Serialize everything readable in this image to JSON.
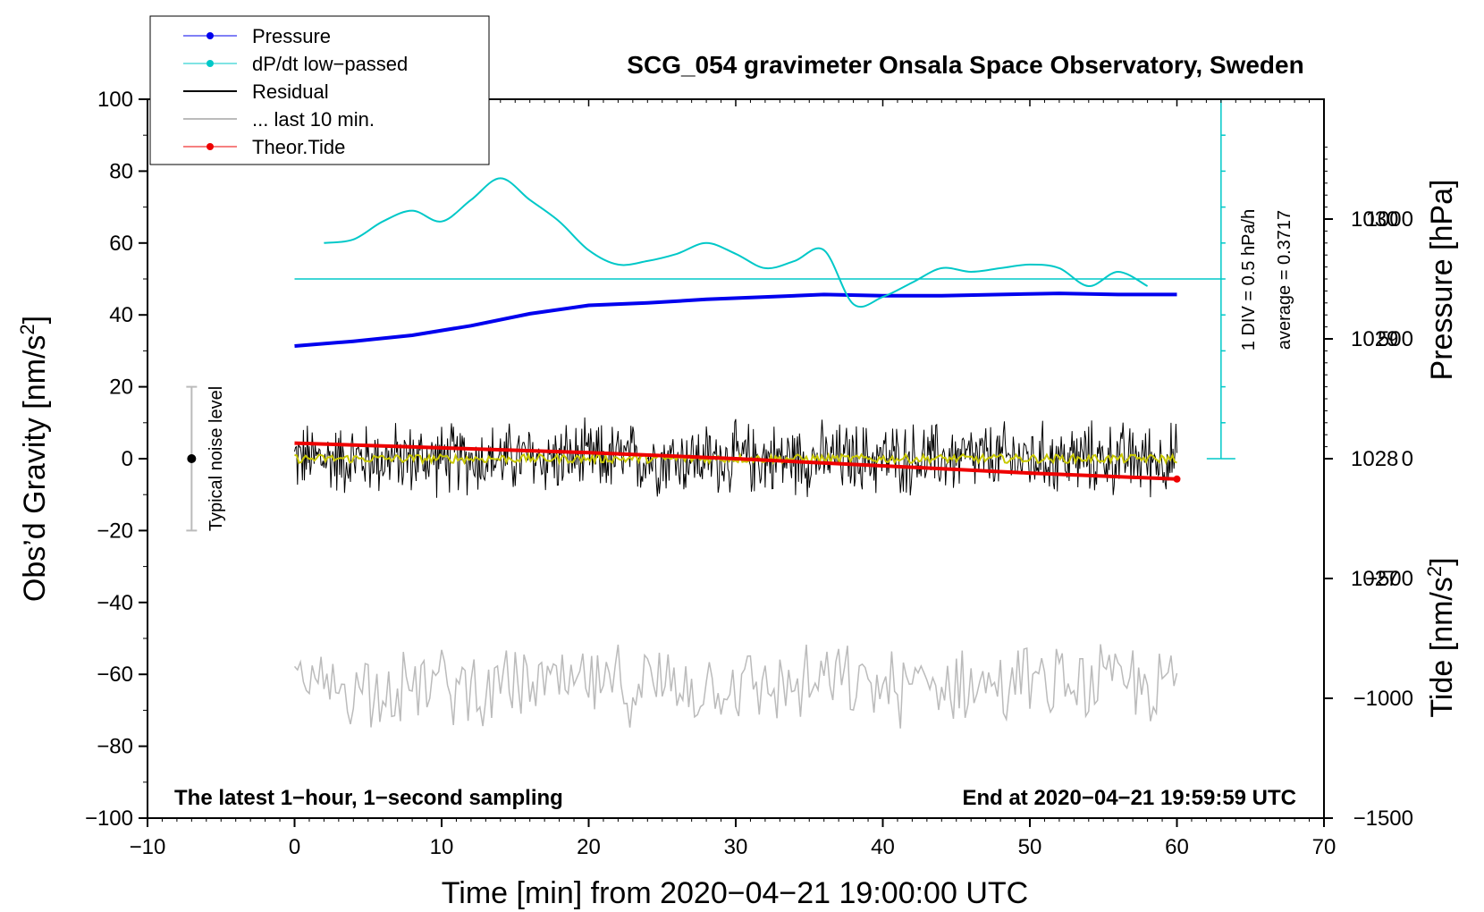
{
  "chart_data": {
    "type": "line",
    "title": "SCG_054 gravimeter Onsala Space Observatory, Sweden",
    "xlabel": "Time [min] from 2020−04−21 19:00:00 UTC",
    "ylabel_left": "Obs’d Gravity [nm/s",
    "ylabel_left_sup": "2",
    "ylabel_left_end": "]",
    "ylabel_right_pressure": "Pressure [hPa]",
    "ylabel_right_tide": "Tide [nm/s",
    "ylabel_right_tide_sup": "2",
    "ylabel_right_tide_end": "]",
    "xlim": [
      -10,
      70
    ],
    "ylim": [
      -100,
      100
    ],
    "x_ticks": [
      {
        "v": -10,
        "label": "−10"
      },
      {
        "v": 0,
        "label": "0"
      },
      {
        "v": 10,
        "label": "10"
      },
      {
        "v": 20,
        "label": "20"
      },
      {
        "v": 30,
        "label": "30"
      },
      {
        "v": 40,
        "label": "40"
      },
      {
        "v": 50,
        "label": "50"
      },
      {
        "v": 60,
        "label": "60"
      },
      {
        "v": 70,
        "label": "70"
      }
    ],
    "y_ticks": [
      {
        "v": 100,
        "label": "100"
      },
      {
        "v": 80,
        "label": "80"
      },
      {
        "v": 60,
        "label": "60"
      },
      {
        "v": 40,
        "label": "40"
      },
      {
        "v": 20,
        "label": "20"
      },
      {
        "v": 0,
        "label": "0"
      },
      {
        "v": -20,
        "label": "−20"
      },
      {
        "v": -40,
        "label": "−40"
      },
      {
        "v": -60,
        "label": "−60"
      },
      {
        "v": -80,
        "label": "−80"
      },
      {
        "v": -100,
        "label": "−100"
      }
    ],
    "pressure_axis": {
      "ylim": [
        1025.0,
        1031.0
      ],
      "ticks": [
        {
          "v": 1030,
          "label": "1030"
        },
        {
          "v": 1029,
          "label": "1029"
        },
        {
          "v": 1028,
          "label": "1028"
        },
        {
          "v": 1027,
          "label": "1027"
        }
      ]
    },
    "tide_axis": {
      "ylim": [
        -1500,
        1500
      ],
      "ticks": [
        {
          "v": 1000,
          "label": "1000"
        },
        {
          "v": 500,
          "label": "500"
        },
        {
          "v": 0,
          "label": "0"
        },
        {
          "v": -500,
          "label": "−500"
        },
        {
          "v": -1000,
          "label": "−1000"
        },
        {
          "v": -1500,
          "label": "−1500"
        }
      ]
    },
    "series": [
      {
        "name": "Pressure",
        "color": "#0000ee",
        "axis": "pressure",
        "x": [
          0,
          4,
          8,
          12,
          16,
          20,
          24,
          28,
          32,
          36,
          40,
          44,
          48,
          52,
          56,
          60
        ],
        "y": [
          1028.94,
          1028.98,
          1029.03,
          1029.11,
          1029.21,
          1029.28,
          1029.3,
          1029.33,
          1029.35,
          1029.37,
          1029.36,
          1029.36,
          1029.37,
          1029.38,
          1029.37,
          1029.37
        ]
      },
      {
        "name": "dP/dt low−passed",
        "color": "#00c8c8",
        "axis": "gravity",
        "x": [
          2,
          4,
          6,
          8,
          10,
          12,
          14,
          16,
          18,
          20,
          22,
          24,
          26,
          28,
          30,
          32,
          34,
          36,
          38,
          40,
          42,
          44,
          46,
          48,
          50,
          52,
          54,
          56,
          58
        ],
        "y": [
          60,
          61,
          66,
          69,
          66,
          72,
          78,
          72,
          66,
          58,
          54,
          55,
          57,
          60,
          57,
          53,
          55,
          58,
          43,
          45,
          49,
          53,
          52,
          53,
          54,
          53,
          48,
          52,
          48
        ]
      },
      {
        "name": "Residual",
        "color": "#000000",
        "axis": "gravity",
        "x": [
          0,
          60
        ],
        "y": [
          0,
          0
        ],
        "amplitude": 8
      },
      {
        "name": "... last 10 min.",
        "color": "#bbbbbb",
        "axis": "gravity",
        "x": [
          0,
          60
        ],
        "y": [
          -63,
          -63
        ],
        "amplitude": 8
      },
      {
        "name": "Theor.Tide",
        "color": "#ee0000",
        "axis": "tide",
        "x": [
          0,
          10,
          20,
          30,
          40,
          50,
          60
        ],
        "y": [
          65,
          45,
          25,
          0,
          -30,
          -60,
          -85
        ]
      }
    ],
    "lowpass_series": {
      "name": "residual low−passed",
      "color": "#c8c800",
      "amplitude": 1.2
    },
    "dpdt_average_value": 50,
    "dpdt_scale": {
      "div_label": "1 DIV = 0.5 hPa/h",
      "average_label": "average = 0.3717",
      "x": 63,
      "y_top": 100,
      "y_bottom": 0,
      "divisions": 10
    },
    "noise_level": {
      "x": -7,
      "y": 0,
      "err": 20,
      "label": "Typical noise level"
    },
    "legend": [
      {
        "label": "Pressure",
        "color": "#0000ee",
        "marker": true
      },
      {
        "label": "dP/dt low−passed",
        "color": "#00c8c8",
        "marker": true
      },
      {
        "label": "Residual",
        "color": "#000000",
        "marker": false
      },
      {
        "label": "... last 10 min.",
        "color": "#bbbbbb",
        "marker": false
      },
      {
        "label": "Theor.Tide",
        "color": "#ee0000",
        "marker": true
      }
    ],
    "annotation_left": "The latest 1−hour, 1−second sampling",
    "annotation_right": "End at 2020−04−21 19:59:59 UTC"
  }
}
